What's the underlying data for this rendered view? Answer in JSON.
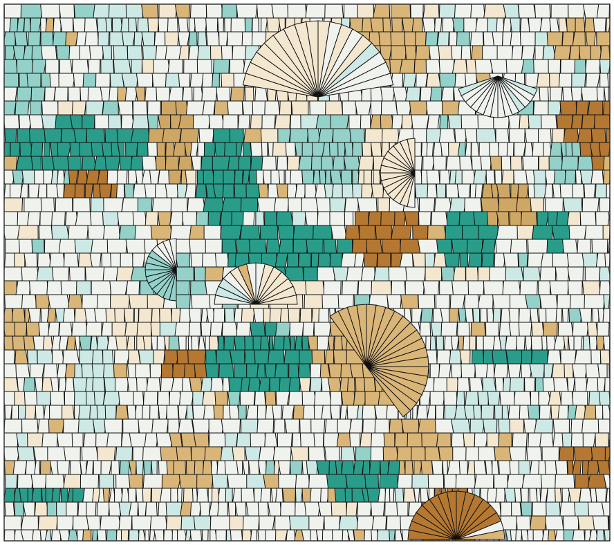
{
  "mosaic": {
    "palette": {
      "cream": "#f0f2ee",
      "beige_light": "#f3e7d0",
      "tan": "#d9b578",
      "tan_mid": "#cfa765",
      "brown": "#b47832",
      "teal_light": "#cde9e5",
      "teal_mid": "#93d1c9",
      "teal_dark": "#2a9c8a",
      "stroke": "#111111",
      "frame_stroke": "#333333"
    },
    "legend_order": [
      "brown",
      "tan_mid",
      "tan",
      "beige_light",
      "cream",
      "teal_light",
      "teal_mid",
      "teal_dark"
    ],
    "regions": [
      {
        "name": "teal-band-left-upper",
        "color": "teal_dark"
      },
      {
        "name": "teal-band-center-arc",
        "color": "teal_dark"
      },
      {
        "name": "teal-band-center-lower",
        "color": "teal_dark"
      },
      {
        "name": "teal-band-left-bottom",
        "color": "teal_dark"
      },
      {
        "name": "teal-cluster-right",
        "color": "teal_dark"
      },
      {
        "name": "teal-band-right-lower",
        "color": "teal_dark"
      },
      {
        "name": "brown-cluster-right-upper",
        "color": "brown"
      },
      {
        "name": "brown-cluster-center",
        "color": "brown"
      },
      {
        "name": "brown-cluster-left-lower",
        "color": "brown"
      },
      {
        "name": "brown-cluster-bottom-right",
        "color": "brown"
      },
      {
        "name": "cream-field-left",
        "color": "cream"
      },
      {
        "name": "cream-field-right",
        "color": "cream"
      }
    ]
  }
}
